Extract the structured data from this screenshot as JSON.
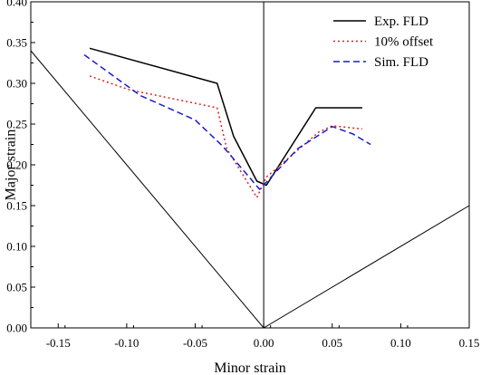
{
  "chart_data": {
    "type": "line",
    "xlabel": "Minor strain",
    "ylabel": "Major strain",
    "xlim": [
      -0.17,
      0.15
    ],
    "ylim": [
      0.0,
      0.4
    ],
    "x_ticks": [
      -0.15,
      -0.1,
      -0.05,
      0.0,
      0.05,
      0.1,
      0.15
    ],
    "x_tick_labels": [
      "-0.15",
      "-0.10",
      "-0.05",
      "0.00",
      "0.05",
      "0.10",
      "0.15"
    ],
    "y_ticks": [
      0.0,
      0.05,
      0.1,
      0.15,
      0.2,
      0.25,
      0.3,
      0.35,
      0.4
    ],
    "y_tick_labels": [
      "0.00",
      "0.05",
      "0.10",
      "0.15",
      "0.20",
      "0.25",
      "0.30",
      "0.35",
      "0.40"
    ],
    "grid": false,
    "legend_position": "top-right",
    "series": [
      {
        "name": "Exp. FLD",
        "color": "#000000",
        "style": "solid",
        "x": [
          -0.127,
          -0.034,
          -0.022,
          -0.005,
          0.002,
          0.038,
          0.052,
          0.072
        ],
        "y": [
          0.343,
          0.3,
          0.235,
          0.18,
          0.175,
          0.27,
          0.27,
          0.27
        ]
      },
      {
        "name": "10% offset",
        "color": "#dd2222",
        "style": "dotted",
        "x": [
          -0.127,
          -0.098,
          -0.063,
          -0.034,
          -0.027,
          -0.005,
          0.002,
          0.04,
          0.05,
          0.072
        ],
        "y": [
          0.309,
          0.292,
          0.28,
          0.27,
          0.22,
          0.16,
          0.185,
          0.24,
          0.248,
          0.244
        ]
      },
      {
        "name": "Sim. FLD",
        "color": "#1a1acc",
        "style": "dashed",
        "x": [
          -0.131,
          -0.09,
          -0.05,
          -0.03,
          -0.003,
          0.025,
          0.05,
          0.065,
          0.078
        ],
        "y": [
          0.335,
          0.285,
          0.255,
          0.223,
          0.17,
          0.22,
          0.247,
          0.238,
          0.225
        ]
      }
    ],
    "reference_lines": [
      {
        "x": [
          -0.17,
          0.0,
          0.15
        ],
        "y": [
          0.34,
          0.0,
          0.15
        ],
        "color": "#000000"
      },
      {
        "x": [
          0.0,
          0.0
        ],
        "y": [
          0.0,
          0.4
        ],
        "color": "#000000"
      }
    ]
  }
}
